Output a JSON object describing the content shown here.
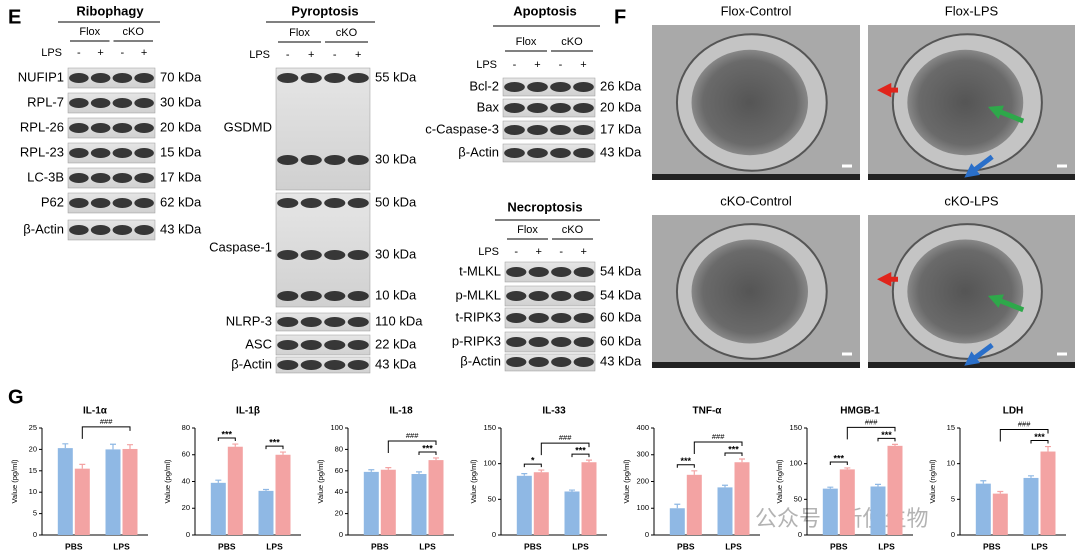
{
  "panel_e": {
    "letter": "E",
    "blots": [
      {
        "title": "Ribophagy",
        "groups": [
          "Flox",
          "cKO"
        ],
        "treatment": "LPS",
        "signs": [
          "-",
          "+",
          "-",
          "+"
        ],
        "rows": [
          {
            "protein": "NUFIP1",
            "markers": [
              "70 kDa"
            ]
          },
          {
            "protein": "RPL-7",
            "markers": [
              "30 kDa"
            ]
          },
          {
            "protein": "RPL-26",
            "markers": [
              "20 kDa"
            ]
          },
          {
            "protein": "RPL-23",
            "markers": [
              "15 kDa"
            ]
          },
          {
            "protein": "LC-3B",
            "markers": [
              "17 kDa"
            ]
          },
          {
            "protein": "P62",
            "markers": [
              "62 kDa"
            ]
          },
          {
            "protein": "β-Actin",
            "markers": [
              "43 kDa"
            ]
          }
        ]
      },
      {
        "title": "Pyroptosis",
        "groups": [
          "Flox",
          "cKO"
        ],
        "treatment": "LPS",
        "signs": [
          "-",
          "+",
          "-",
          "+"
        ],
        "rows": [
          {
            "protein": "GSDMD",
            "markers": [
              "55 kDa",
              "30 kDa"
            ]
          },
          {
            "protein": "Caspase-1",
            "markers": [
              "50 kDa",
              "30 kDa",
              "10 kDa"
            ]
          },
          {
            "protein": "NLRP-3",
            "markers": [
              "110 kDa"
            ]
          },
          {
            "protein": "ASC",
            "markers": [
              "22 kDa"
            ]
          },
          {
            "protein": "β-Actin",
            "markers": [
              "43 kDa"
            ]
          }
        ]
      },
      {
        "title": "Apoptosis",
        "groups": [
          "Flox",
          "cKO"
        ],
        "treatment": "LPS",
        "signs": [
          "-",
          "+",
          "-",
          "+"
        ],
        "rows": [
          {
            "protein": "Bcl-2",
            "markers": [
              "26 kDa"
            ]
          },
          {
            "protein": "Bax",
            "markers": [
              "20 kDa"
            ]
          },
          {
            "protein": "c-Caspase-3",
            "markers": [
              "17 kDa"
            ]
          },
          {
            "protein": "β-Actin",
            "markers": [
              "43 kDa"
            ]
          }
        ]
      },
      {
        "title": "Necroptosis",
        "groups": [
          "Flox",
          "cKO"
        ],
        "treatment": "LPS",
        "signs": [
          "-",
          "+",
          "-",
          "+"
        ],
        "rows": [
          {
            "protein": "t-MLKL",
            "markers": [
              "54 kDa"
            ]
          },
          {
            "protein": "p-MLKL",
            "markers": [
              "54 kDa"
            ]
          },
          {
            "protein": "t-RIPK3",
            "markers": [
              "60 kDa"
            ]
          },
          {
            "protein": "p-RIPK3",
            "markers": [
              "60 kDa"
            ]
          },
          {
            "protein": "β-Actin",
            "markers": [
              "43 kDa"
            ]
          }
        ]
      }
    ]
  },
  "panel_f": {
    "letter": "F",
    "images": [
      "Flox-Control",
      "Flox-LPS",
      "cKO-Control",
      "cKO-LPS"
    ]
  },
  "panel_g": {
    "letter": "G"
  },
  "chart_data": [
    {
      "type": "bar",
      "title": "IL-1α",
      "y_label": "Value (pg/ml)",
      "categories": [
        "PBS",
        "LPS"
      ],
      "series": [
        {
          "color": "#8fb8e4",
          "values": [
            20.3,
            20
          ],
          "errors": [
            1,
            1.2
          ]
        },
        {
          "color": "#f3a3a3",
          "values": [
            15.5,
            20.1
          ],
          "errors": [
            1,
            1
          ]
        }
      ],
      "ylim": [
        0,
        25
      ],
      "yticks": [
        0,
        5,
        10,
        15,
        20,
        25
      ],
      "within": [
        null,
        null
      ],
      "across": "###"
    },
    {
      "type": "bar",
      "title": "IL-1β",
      "y_label": "Value (pg/ml)",
      "categories": [
        "PBS",
        "LPS"
      ],
      "series": [
        {
          "color": "#8fb8e4",
          "values": [
            39,
            33
          ],
          "errors": [
            2,
            1
          ]
        },
        {
          "color": "#f3a3a3",
          "values": [
            66,
            60
          ],
          "errors": [
            2,
            2
          ]
        }
      ],
      "ylim": [
        0,
        80
      ],
      "yticks": [
        0,
        20,
        40,
        60,
        80
      ],
      "within": [
        "***",
        "***"
      ],
      "across": null
    },
    {
      "type": "bar",
      "title": "IL-18",
      "y_label": "Value (pg/ml)",
      "categories": [
        "PBS",
        "LPS"
      ],
      "series": [
        {
          "color": "#8fb8e4",
          "values": [
            59,
            57
          ],
          "errors": [
            2,
            2
          ]
        },
        {
          "color": "#f3a3a3",
          "values": [
            61,
            70
          ],
          "errors": [
            2,
            2
          ]
        }
      ],
      "ylim": [
        0,
        100
      ],
      "yticks": [
        0,
        20,
        40,
        60,
        80,
        100
      ],
      "within": [
        null,
        "***"
      ],
      "across": "###"
    },
    {
      "type": "bar",
      "title": "IL-33",
      "y_label": "Value (pg/ml)",
      "categories": [
        "PBS",
        "LPS"
      ],
      "series": [
        {
          "color": "#8fb8e4",
          "values": [
            83,
            61
          ],
          "errors": [
            3,
            2
          ]
        },
        {
          "color": "#f3a3a3",
          "values": [
            88,
            102
          ],
          "errors": [
            3,
            3
          ]
        }
      ],
      "ylim": [
        0,
        150
      ],
      "yticks": [
        0,
        50,
        100,
        150
      ],
      "within": [
        "*",
        "***"
      ],
      "across": "###"
    },
    {
      "type": "bar",
      "title": "TNF-α",
      "y_label": "Value (pg/ml)",
      "categories": [
        "PBS",
        "LPS"
      ],
      "series": [
        {
          "color": "#8fb8e4",
          "values": [
            100,
            178
          ],
          "errors": [
            15,
            8
          ]
        },
        {
          "color": "#f3a3a3",
          "values": [
            225,
            272
          ],
          "errors": [
            15,
            12
          ]
        }
      ],
      "ylim": [
        0,
        400
      ],
      "yticks": [
        0,
        100,
        200,
        300,
        400
      ],
      "within": [
        "***",
        "***"
      ],
      "across": "###"
    },
    {
      "type": "bar",
      "title": "HMGB-1",
      "y_label": "Value (ng/ml)",
      "categories": [
        "PBS",
        "LPS"
      ],
      "series": [
        {
          "color": "#8fb8e4",
          "values": [
            65,
            68
          ],
          "errors": [
            2,
            3
          ]
        },
        {
          "color": "#f3a3a3",
          "values": [
            92,
            125
          ],
          "errors": [
            2,
            2
          ]
        }
      ],
      "ylim": [
        0,
        150
      ],
      "yticks": [
        0,
        50,
        100,
        150
      ],
      "within": [
        "***",
        "***"
      ],
      "across": "###"
    },
    {
      "type": "bar",
      "title": "LDH",
      "y_label": "Value (ng/ml)",
      "categories": [
        "PBS",
        "LPS"
      ],
      "series": [
        {
          "color": "#8fb8e4",
          "values": [
            7.2,
            8
          ],
          "errors": [
            0.4,
            0.3
          ]
        },
        {
          "color": "#f3a3a3",
          "values": [
            5.8,
            11.7
          ],
          "errors": [
            0.3,
            0.7
          ]
        }
      ],
      "ylim": [
        0,
        15
      ],
      "yticks": [
        0,
        5,
        10,
        15
      ],
      "within": [
        null,
        "***"
      ],
      "across": "###"
    }
  ],
  "watermark": "公众号 · 新使生物"
}
